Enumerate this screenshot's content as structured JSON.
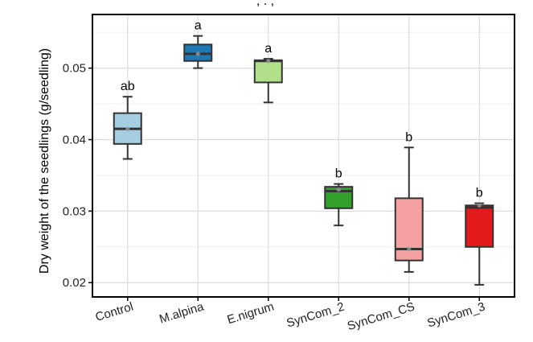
{
  "chart_data": {
    "type": "box",
    "title_fragment": ", . ,",
    "ylabel": "Dry weight of the seedlings (g/seedling)",
    "xlabel": "",
    "ylim": [
      0.018,
      0.0575
    ],
    "yticks": [
      0.02,
      0.03,
      0.04,
      0.05
    ],
    "ytick_labels": [
      "0.02",
      "0.03",
      "0.04",
      "0.05"
    ],
    "grid": true,
    "categories": [
      "Control",
      "M.alpina",
      "E.nigrum",
      "SynCom_2",
      "SynCom_CS",
      "SynCom_3"
    ],
    "boxes": [
      {
        "label": "Control",
        "min": 0.0373,
        "q1": 0.0394,
        "median": 0.0415,
        "q3": 0.0437,
        "max": 0.046,
        "mean": 0.0415,
        "letter": "ab",
        "color": "#a6cee3"
      },
      {
        "label": "M.alpina",
        "min": 0.05,
        "q1": 0.051,
        "median": 0.052,
        "q3": 0.0533,
        "max": 0.0545,
        "mean": 0.052,
        "letter": "a",
        "color": "#1f78b4"
      },
      {
        "label": "E.nigrum",
        "min": 0.0452,
        "q1": 0.048,
        "median": 0.051,
        "q3": 0.0511,
        "max": 0.0513,
        "mean": 0.051,
        "letter": "a",
        "color": "#b2df8a"
      },
      {
        "label": "SynCom_2",
        "min": 0.028,
        "q1": 0.0304,
        "median": 0.0328,
        "q3": 0.0334,
        "max": 0.0338,
        "mean": 0.033,
        "letter": "b",
        "color": "#33a02c"
      },
      {
        "label": "SynCom_CS",
        "min": 0.0215,
        "q1": 0.0231,
        "median": 0.0247,
        "q3": 0.0318,
        "max": 0.0389,
        "mean": 0.0247,
        "letter": "b",
        "color": "#f4a0a0"
      },
      {
        "label": "SynCom_3",
        "min": 0.0197,
        "q1": 0.025,
        "median": 0.0305,
        "q3": 0.0308,
        "max": 0.0311,
        "mean": 0.0308,
        "letter": "b",
        "color": "#e31a1c"
      }
    ]
  }
}
